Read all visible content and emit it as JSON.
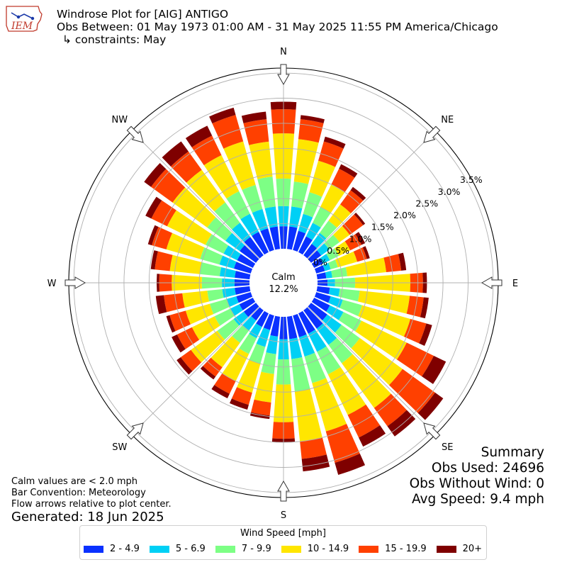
{
  "header": {
    "title": "Windrose Plot for [AIG] ANTIGO",
    "obs_between": "Obs Between: 01 May 1973 01:00 AM - 31 May 2025 11:55 PM America/Chicago",
    "constraints": "↳ constraints: May"
  },
  "logo": {
    "text": "IEM"
  },
  "calm": {
    "label": "Calm",
    "value": "12.2%"
  },
  "notes": {
    "calm_values": "Calm values are < 2.0 mph",
    "bar_convention": "Bar Convention: Meteorology",
    "flow_arrows": "Flow arrows relative to plot center.",
    "generated": "Generated: 18 Jun 2025"
  },
  "summary": {
    "title": "Summary",
    "obs_used": "Obs Used: 24696",
    "obs_without_wind": "Obs Without Wind: 0",
    "avg_speed": "Avg Speed: 9.4 mph"
  },
  "legend": {
    "title": "Wind Speed [mph]"
  },
  "chart_data": {
    "type": "windrose",
    "radial_unit": "%",
    "r_ticks": [
      "0.0%",
      "0.5%",
      "1.0%",
      "1.5%",
      "2.0%",
      "2.5%",
      "3.0%",
      "3.5%"
    ],
    "r_max": 3.6,
    "directions": [
      "N",
      "NE",
      "E",
      "SE",
      "S",
      "SW",
      "W",
      "NW"
    ],
    "calm_percent": 12.2,
    "bins": [
      {
        "label": "2 - 4.9",
        "color": "#0a31ff"
      },
      {
        "label": "5 - 6.9",
        "color": "#00d0f5"
      },
      {
        "label": "7 - 9.9",
        "color": "#7dff85"
      },
      {
        "label": "10 - 14.9",
        "color": "#ffe600"
      },
      {
        "label": "15 - 19.9",
        "color": "#ff4000"
      },
      {
        "label": "20+",
        "color": "#7f0000"
      }
    ],
    "sectors_deg": [
      0,
      10,
      20,
      30,
      40,
      50,
      60,
      70,
      80,
      90,
      100,
      110,
      120,
      130,
      140,
      150,
      160,
      170,
      180,
      190,
      200,
      210,
      220,
      230,
      240,
      250,
      260,
      270,
      280,
      290,
      300,
      310,
      320,
      330,
      340,
      350
    ],
    "cumulative_percent": [
      [
        0.45,
        0.85,
        1.4,
        2.3,
        2.78,
        2.93
      ],
      [
        0.45,
        0.85,
        1.35,
        2.2,
        2.6,
        2.68
      ],
      [
        0.4,
        0.75,
        1.2,
        1.85,
        2.25,
        2.35
      ],
      [
        0.35,
        0.65,
        1.0,
        1.5,
        1.85,
        1.95
      ],
      [
        0.28,
        0.55,
        0.85,
        1.25,
        1.6,
        1.68
      ],
      [
        0.25,
        0.45,
        0.7,
        0.95,
        1.28,
        1.33
      ],
      [
        0.2,
        0.35,
        0.55,
        0.8,
        1.05,
        1.13
      ],
      [
        0.18,
        0.3,
        0.45,
        0.85,
        1.05,
        1.11
      ],
      [
        0.18,
        0.3,
        0.6,
        1.38,
        1.68,
        1.78
      ],
      [
        0.2,
        0.35,
        0.75,
        1.85,
        2.1,
        2.18
      ],
      [
        0.25,
        0.45,
        0.85,
        1.85,
        2.13,
        2.23
      ],
      [
        0.3,
        0.55,
        0.95,
        1.95,
        2.28,
        2.4
      ],
      [
        0.35,
        0.65,
        1.05,
        2.05,
        2.65,
        2.92
      ],
      [
        0.4,
        0.75,
        1.2,
        2.25,
        3.05,
        3.25
      ],
      [
        0.45,
        0.85,
        1.3,
        2.4,
        2.85,
        3.1
      ],
      [
        0.45,
        0.85,
        1.35,
        2.25,
        2.75,
        2.95
      ],
      [
        0.45,
        0.85,
        1.4,
        2.4,
        3.05,
        3.3
      ],
      [
        0.45,
        0.85,
        1.5,
        2.5,
        2.85,
        3.1
      ],
      [
        0.45,
        0.85,
        1.35,
        2.1,
        2.43,
        2.5
      ],
      [
        0.4,
        0.75,
        1.15,
        1.72,
        1.98,
        2.05
      ],
      [
        0.3,
        0.65,
        1.0,
        1.6,
        1.85,
        1.95
      ],
      [
        0.3,
        0.55,
        0.9,
        1.5,
        1.78,
        1.88
      ],
      [
        0.25,
        0.5,
        0.8,
        1.4,
        1.63,
        1.7
      ],
      [
        0.3,
        0.55,
        0.95,
        1.6,
        1.85,
        1.95
      ],
      [
        0.3,
        0.5,
        0.85,
        1.35,
        1.68,
        1.8
      ],
      [
        0.3,
        0.5,
        0.85,
        1.35,
        1.68,
        1.75
      ],
      [
        0.3,
        0.55,
        0.85,
        1.35,
        1.72,
        1.88
      ],
      [
        0.3,
        0.55,
        0.95,
        1.55,
        1.8,
        1.85
      ],
      [
        0.3,
        0.6,
        1.0,
        1.6,
        1.9,
        1.98
      ],
      [
        0.35,
        0.65,
        1.05,
        1.75,
        2.05,
        2.13
      ],
      [
        0.35,
        0.65,
        1.05,
        1.9,
        2.25,
        2.38
      ],
      [
        0.4,
        0.75,
        1.2,
        2.05,
        2.58,
        2.75
      ],
      [
        0.45,
        0.8,
        1.3,
        2.1,
        2.55,
        2.8
      ],
      [
        0.45,
        0.85,
        1.35,
        2.15,
        2.58,
        2.8
      ],
      [
        0.45,
        0.85,
        1.35,
        2.25,
        2.8,
        2.95
      ],
      [
        0.45,
        0.85,
        1.45,
        2.15,
        2.6,
        2.75
      ]
    ]
  }
}
